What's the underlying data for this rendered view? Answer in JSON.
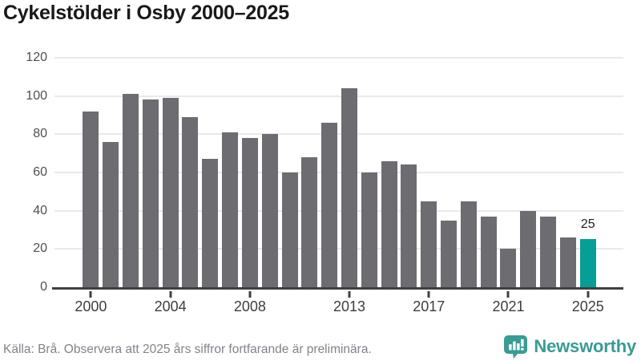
{
  "header": {
    "title": "Cykelstölder i Osby 2000–2025"
  },
  "footer": {
    "source_note": "Källa: Brå. Observera att 2025 års siffror fortfarande är preliminära.",
    "brand_name": "Newsworthy",
    "brand_icon": "speech-bubble-bar-chart-icon"
  },
  "colors": {
    "bar": "#6d6c71",
    "highlight": "#089d95",
    "gridline": "#e9e9e9",
    "axis": "#404040",
    "brand_teal": "#3b9a94",
    "title_text": "#191919",
    "footer_text": "#82828c"
  },
  "chart_data": {
    "type": "bar",
    "title": "Cykelstölder i Osby 2000–2025",
    "categories": [
      "2000",
      "2001",
      "2002",
      "2003",
      "2004",
      "2005",
      "2006",
      "2007",
      "2008",
      "2009",
      "2010",
      "2011",
      "2012",
      "2013",
      "2014",
      "2015",
      "2016",
      "2017",
      "2018",
      "2019",
      "2020",
      "2021",
      "2022",
      "2023",
      "2024",
      "2025"
    ],
    "values": [
      92,
      76,
      101,
      98,
      99,
      89,
      67,
      81,
      78,
      80,
      60,
      68,
      86,
      104,
      60,
      66,
      64,
      45,
      35,
      45,
      37,
      20,
      40,
      37,
      26,
      25
    ],
    "highlight_category": "2025",
    "value_label": {
      "category": "2025",
      "text": "25"
    },
    "xlabel": "",
    "ylabel": "",
    "ylim": [
      0,
      120
    ],
    "y_ticks": [
      0,
      20,
      40,
      60,
      80,
      100,
      120
    ],
    "x_tick_labels": [
      "2000",
      "2004",
      "2008",
      "2013",
      "2017",
      "2021",
      "2025"
    ],
    "grid": true,
    "legend": false
  }
}
